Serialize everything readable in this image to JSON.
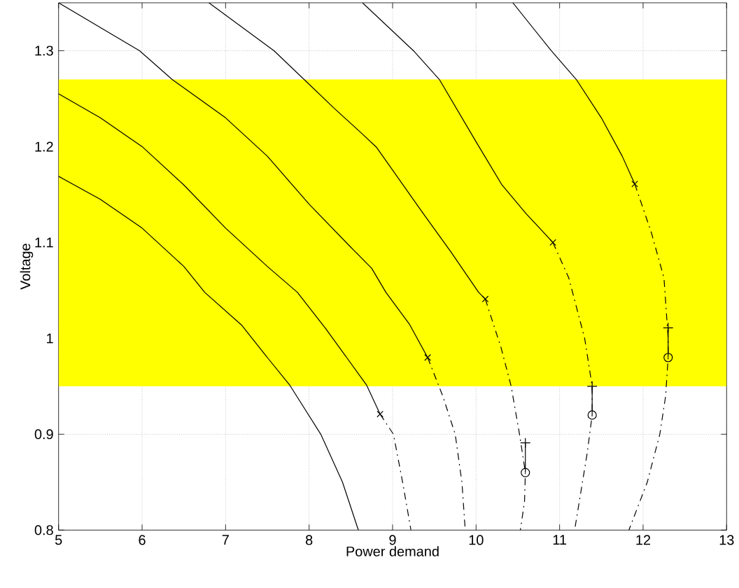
{
  "chart_data": {
    "type": "line",
    "xlabel": "Power demand",
    "ylabel": "Voltage",
    "xlim": [
      5,
      13
    ],
    "ylim": [
      0.8,
      1.35
    ],
    "xticks": [
      5,
      6,
      7,
      8,
      9,
      10,
      11,
      12,
      13
    ],
    "yticks": [
      0.8,
      0.9,
      1,
      1.1,
      1.2,
      1.3
    ],
    "grid": true,
    "line_style": "solid",
    "marker": "none",
    "bands": [
      {
        "axis": "y",
        "from": 0.95,
        "to": 1.27,
        "color": "#ffff00"
      }
    ],
    "series": [
      {
        "color": "#000000",
        "x": [
          5,
          5.5,
          6,
          6.5,
          6.75,
          7.19,
          7.5,
          7.77,
          8.14,
          8.4,
          8.59
        ],
        "values": [
          1.169,
          1.145,
          1.115,
          1.075,
          1.048,
          1.014,
          0.98,
          0.951,
          0.9,
          0.85,
          0.8
        ]
      },
      {
        "color": "#000000",
        "x": [
          5,
          5.5,
          6,
          6.5,
          7,
          7.5,
          7.86,
          8.2,
          8.45,
          8.69,
          8.85
        ],
        "values": [
          1.255,
          1.23,
          1.2,
          1.16,
          1.115,
          1.075,
          1.048,
          1.01,
          0.98,
          0.951,
          0.921
        ]
      },
      {
        "color": "#000000",
        "x": [
          5,
          5.97,
          6.36,
          7,
          7.5,
          8,
          8.5,
          8.75,
          8.92,
          9.2,
          9.42
        ],
        "values": [
          1.35,
          1.3,
          1.27,
          1.23,
          1.19,
          1.14,
          1.095,
          1.073,
          1.048,
          1.015,
          0.98
        ]
      },
      {
        "color": "#000000",
        "x": [
          6.8,
          7.58,
          7.94,
          8.3,
          8.64,
          8.81,
          9.36,
          9.7,
          10.03,
          10.11
        ],
        "values": [
          1.35,
          1.3,
          1.27,
          1.24,
          1.213,
          1.199,
          1.131,
          1.09,
          1.048,
          1.041
        ]
      },
      {
        "color": "#000000",
        "x": [
          8.64,
          9.25,
          9.56,
          10.0,
          10.31,
          10.6,
          10.92
        ],
        "values": [
          1.35,
          1.3,
          1.27,
          1.205,
          1.16,
          1.13,
          1.1
        ]
      },
      {
        "color": "#000000",
        "x": [
          10.44,
          10.9,
          11.2,
          11.5,
          11.75,
          11.9
        ],
        "values": [
          1.35,
          1.3,
          1.27,
          1.23,
          1.19,
          1.161
        ]
      },
      {
        "color": "#000000",
        "line_style": "dashdot",
        "x": [
          8.85,
          9.01,
          9.12,
          9.22
        ],
        "values": [
          0.921,
          0.9,
          0.85,
          0.8
        ]
      },
      {
        "color": "#000000",
        "line_style": "dashdot",
        "x": [
          9.42,
          9.6,
          9.75,
          9.83,
          9.87
        ],
        "values": [
          0.98,
          0.94,
          0.9,
          0.85,
          0.8
        ]
      },
      {
        "color": "#000000",
        "line_style": "dashdot",
        "x": [
          10.11,
          10.3,
          10.42,
          10.52,
          10.59,
          10.58,
          10.53
        ],
        "values": [
          1.041,
          0.99,
          0.95,
          0.9,
          0.86,
          0.83,
          0.8
        ]
      },
      {
        "color": "#000000",
        "line_style": "dashdot",
        "x": [
          10.92,
          11.11,
          11.3,
          11.39,
          11.39,
          11.33,
          11.18
        ],
        "values": [
          1.1,
          1.063,
          1.0,
          0.95,
          0.92,
          0.88,
          0.8
        ]
      },
      {
        "color": "#000000",
        "line_style": "dashdot",
        "x": [
          11.9,
          12.1,
          12.25,
          12.3,
          12.3,
          12.27,
          12.2,
          12.05,
          11.83
        ],
        "values": [
          1.161,
          1.11,
          1.063,
          1.0,
          0.98,
          0.94,
          0.9,
          0.85,
          0.8
        ]
      },
      {
        "color": "#000000",
        "x": [
          10.59,
          10.59
        ],
        "values": [
          0.891,
          0.86
        ]
      },
      {
        "color": "#000000",
        "x": [
          11.39,
          11.39
        ],
        "values": [
          0.95,
          0.92
        ]
      },
      {
        "color": "#000000",
        "x": [
          12.3,
          12.3
        ],
        "values": [
          1.011,
          0.98
        ]
      },
      {
        "type": "scatter",
        "color": "#000000",
        "marker": "cross",
        "x": [
          8.85,
          9.42,
          10.11,
          10.92,
          11.9
        ],
        "values": [
          0.921,
          0.98,
          1.041,
          1.1,
          1.161
        ]
      },
      {
        "type": "scatter",
        "color": "#000000",
        "marker": "plus",
        "x": [
          10.59,
          11.39,
          12.3
        ],
        "values": [
          0.891,
          0.95,
          1.011
        ]
      },
      {
        "type": "scatter",
        "color": "#000000",
        "marker": "circle",
        "x": [
          10.59,
          11.39,
          12.3
        ],
        "values": [
          0.86,
          0.92,
          0.98
        ]
      }
    ]
  }
}
